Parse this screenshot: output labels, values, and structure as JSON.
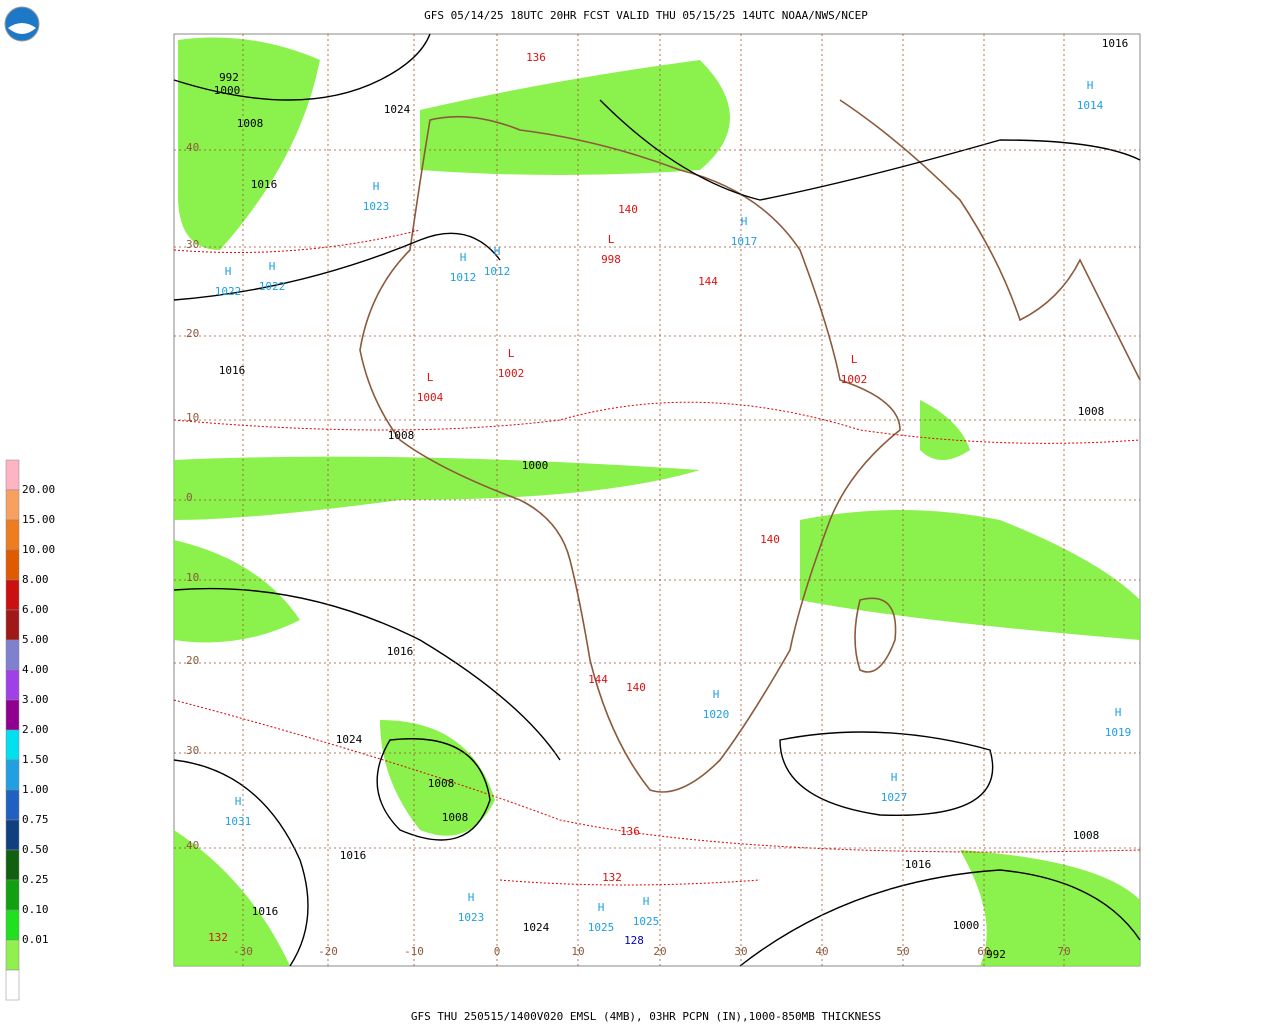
{
  "header": {
    "title": "GFS 05/14/25 18UTC 20HR FCST VALID THU 05/15/25 14UTC NOAA/NWS/NCEP"
  },
  "footer": {
    "caption": "GFS THU 250515/1400V020 EMSL (4MB), 03HR PCPN (IN),1000-850MB THICKNESS"
  },
  "legend": {
    "labels": [
      "20.00",
      "15.00",
      "10.00",
      "8.00",
      "6.00",
      "5.00",
      "4.00",
      "3.00",
      "2.00",
      "1.50",
      "1.00",
      "0.75",
      "0.50",
      "0.25",
      "0.10",
      "0.01"
    ],
    "colors": [
      "#ffb4c4",
      "#f8a060",
      "#f07c20",
      "#e05a00",
      "#cc1010",
      "#a01818",
      "#8080d0",
      "#a040e8",
      "#900090",
      "#00e0f0",
      "#20a0e0",
      "#2060c0",
      "#104080",
      "#106010",
      "#10a010",
      "#20e020",
      "#90f050",
      "#ffffff"
    ]
  },
  "map": {
    "lat_labels": [
      "40",
      "30",
      "20",
      "10",
      "0",
      "10",
      "20",
      "30",
      "40"
    ],
    "lon_labels": [
      "-30",
      "-20",
      "-10",
      "0",
      "10",
      "20",
      "30",
      "40",
      "50",
      "60",
      "70"
    ],
    "centers": [
      {
        "symbol": "H",
        "value": "1023"
      },
      {
        "symbol": "H",
        "value": "1022"
      },
      {
        "symbol": "H",
        "value": "1022"
      },
      {
        "symbol": "H",
        "value": "1012"
      },
      {
        "symbol": "H",
        "value": "1012"
      },
      {
        "symbol": "H",
        "value": "1017"
      },
      {
        "symbol": "L",
        "value": "998"
      },
      {
        "symbol": "L",
        "value": "1002"
      },
      {
        "symbol": "L",
        "value": "1004"
      },
      {
        "symbol": "H",
        "value": "1020"
      },
      {
        "symbol": "H",
        "value": "1027"
      },
      {
        "symbol": "H",
        "value": "1031"
      },
      {
        "symbol": "H",
        "value": "1023"
      },
      {
        "symbol": "H",
        "value": "1025"
      },
      {
        "symbol": "H",
        "value": "1025"
      },
      {
        "symbol": "H",
        "value": "1019"
      },
      {
        "symbol": "L",
        "value": "1002"
      },
      {
        "symbol": "H",
        "value": "1014"
      }
    ],
    "isobar_labels": [
      "1000",
      "992",
      "1008",
      "1016",
      "1024",
      "1016",
      "1008",
      "1000",
      "1016",
      "1024",
      "1016",
      "1008",
      "1008",
      "1016",
      "1024",
      "1008",
      "1016",
      "1000",
      "992",
      "1016",
      "1008"
    ],
    "thickness_labels": [
      "136",
      "140",
      "144",
      "136",
      "132",
      "140",
      "144",
      "140",
      "128",
      "132"
    ]
  }
}
